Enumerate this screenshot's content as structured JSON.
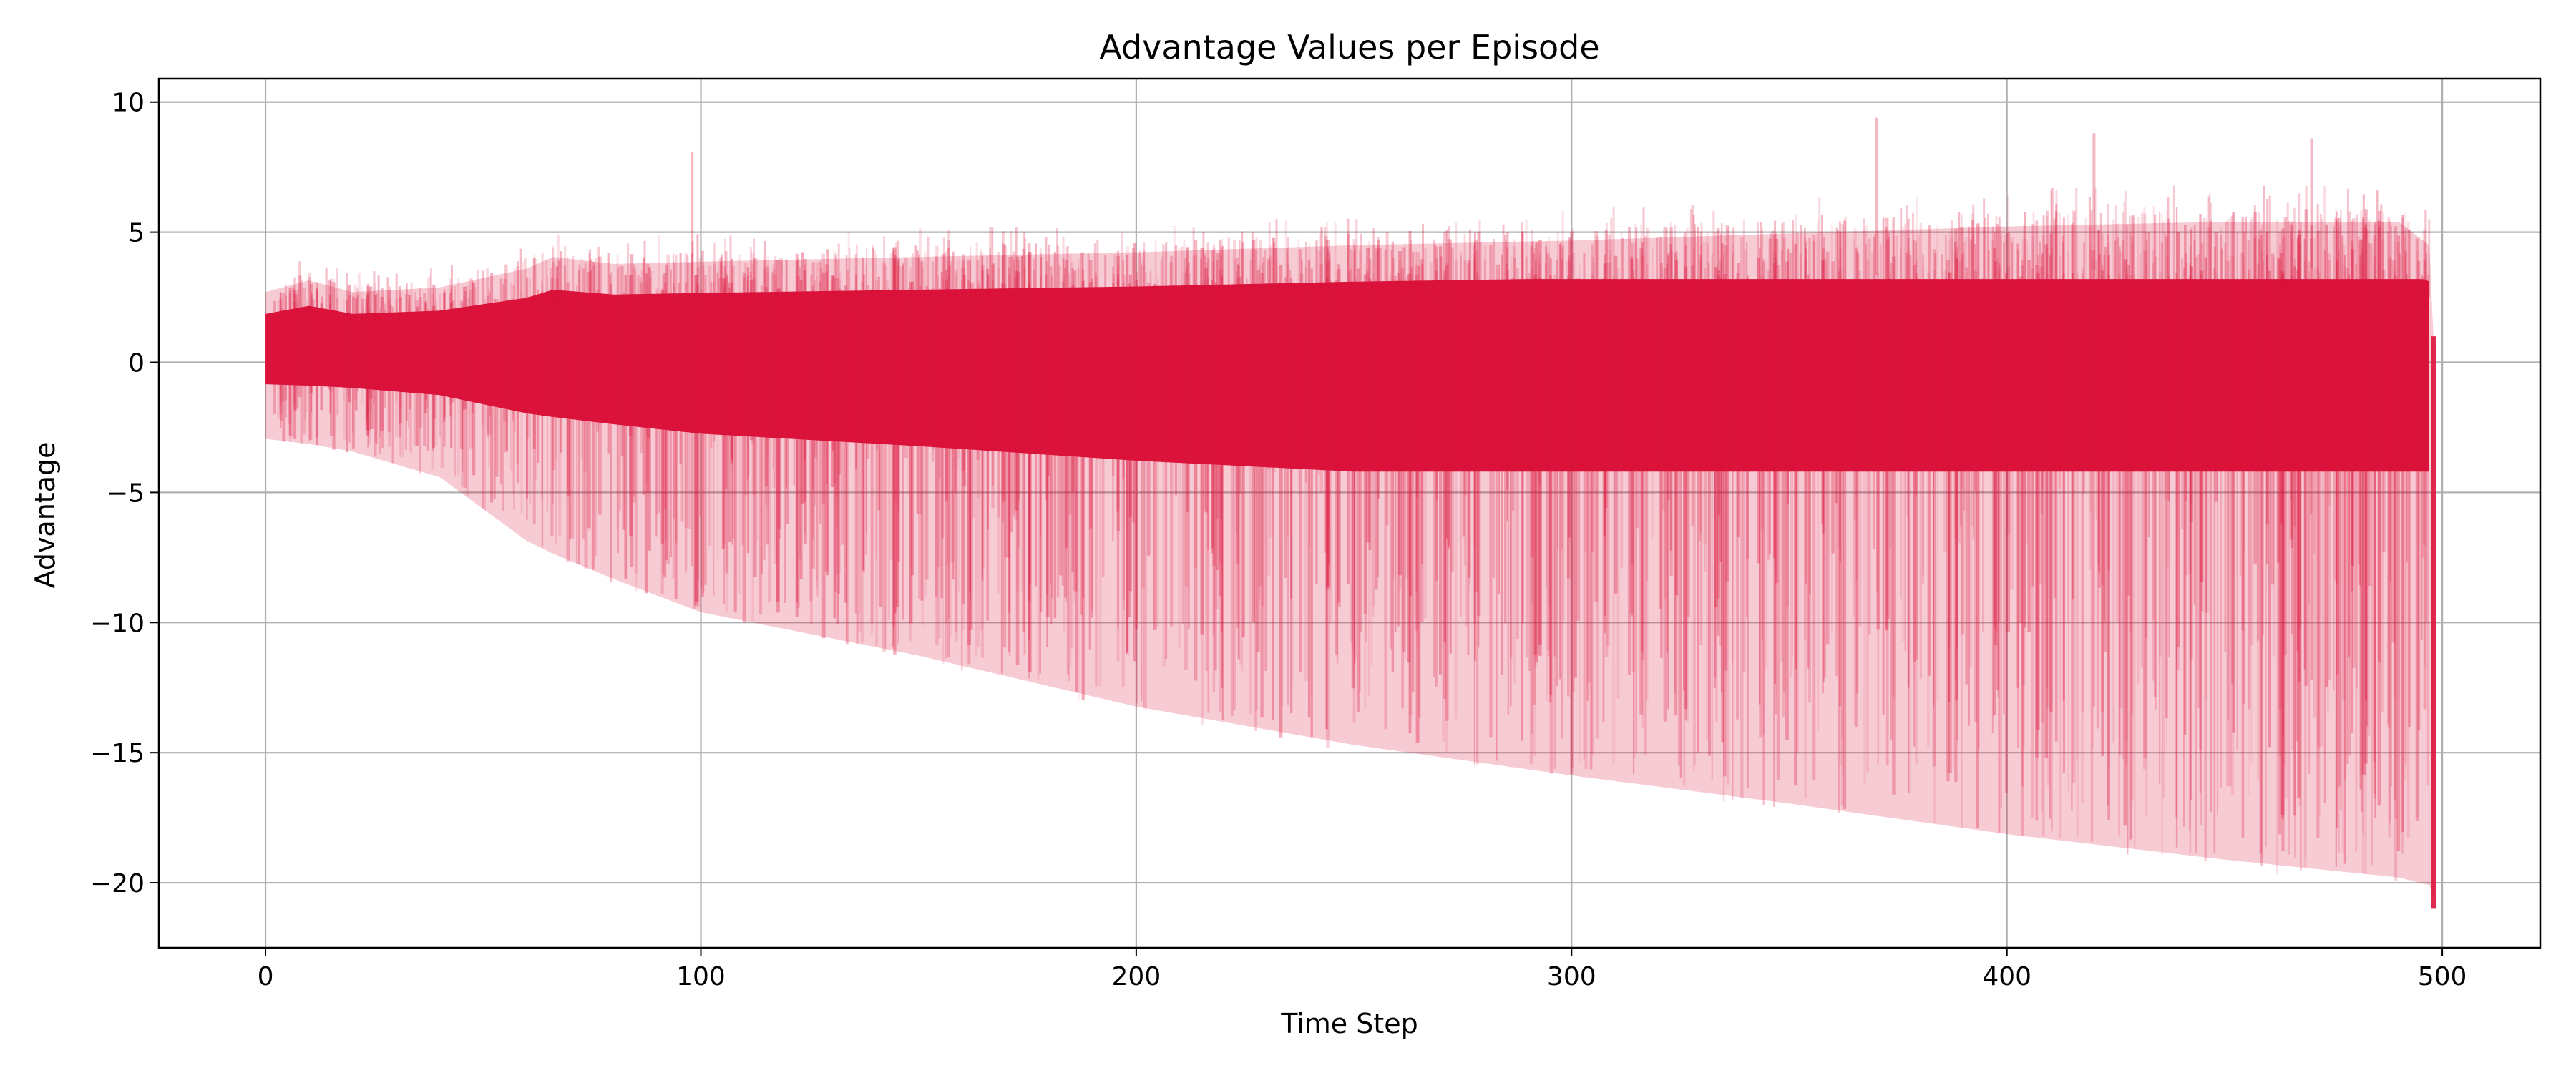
{
  "chart_data": {
    "type": "line",
    "title": "Advantage Values per Episode",
    "xlabel": "Time Step",
    "ylabel": "Advantage",
    "xlim": [
      -24.5,
      522.5
    ],
    "ylim": [
      -22.5,
      10.9
    ],
    "xticks": [
      0,
      100,
      200,
      300,
      400,
      500
    ],
    "yticks": [
      10,
      5,
      0,
      -5,
      -10,
      -15,
      -20
    ],
    "xtick_labels": [
      "0",
      "100",
      "200",
      "300",
      "400",
      "500"
    ],
    "ytick_labels": [
      "10",
      "5",
      "0",
      "−5",
      "−10",
      "−15",
      "−20"
    ],
    "grid": true,
    "legend": "none",
    "color": "#DC143C",
    "line_alpha": 0.12,
    "time_steps": 499,
    "num_episodes": "many (overlapping translucent lines)",
    "envelope": {
      "x": [
        0,
        10,
        20,
        40,
        60,
        66,
        80,
        100,
        150,
        200,
        250,
        300,
        350,
        400,
        450,
        490,
        497,
        498
      ],
      "upper": [
        3.0,
        3.5,
        3.0,
        3.2,
        4.0,
        4.5,
        4.2,
        4.3,
        4.5,
        4.7,
        5.0,
        5.2,
        5.5,
        5.8,
        6.0,
        6.0,
        5.0,
        1.0
      ],
      "lower": [
        -3.0,
        -3.2,
        -3.5,
        -4.5,
        -7.0,
        -7.5,
        -8.5,
        -9.8,
        -11.5,
        -13.5,
        -15.0,
        -16.2,
        -17.3,
        -18.5,
        -19.5,
        -20.2,
        -20.5,
        -21.0
      ]
    },
    "end_values": {
      "x": 498,
      "y_min": -21.0,
      "y_max": 1.0
    },
    "notable_spikes": [
      {
        "x": 98,
        "y": 8.1
      },
      {
        "x": 370,
        "y": 9.4
      },
      {
        "x": 420,
        "y": 8.8
      },
      {
        "x": 470,
        "y": 8.6
      }
    ]
  }
}
